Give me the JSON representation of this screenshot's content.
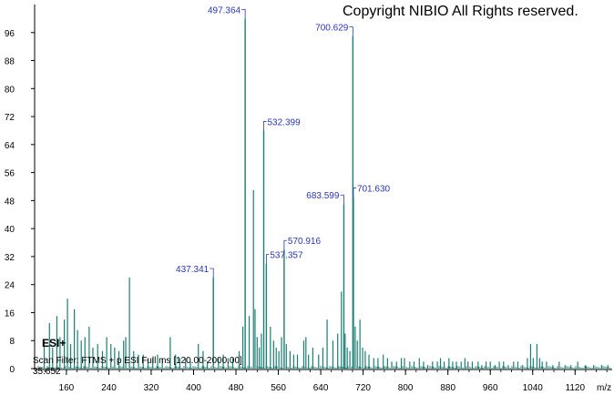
{
  "copyright": "Copyright NIBIO All Rights reserved.",
  "ionization_mode": "ESI+",
  "scan_filter": "Scan Filter: FTMS + p ESI Full ms [120.00-2000.00]",
  "time_value": "35.652",
  "colors": {
    "peak": "#1a7f74",
    "annotation": "#2a36b3",
    "axis": "#000000"
  },
  "chart_data": {
    "type": "bar",
    "title": "",
    "xlabel": "m/z",
    "ylabel": "",
    "xlim": [
      100,
      1190
    ],
    "ylim": [
      0,
      104
    ],
    "x_ticks": [
      160,
      240,
      320,
      400,
      480,
      560,
      640,
      720,
      800,
      880,
      960,
      1040,
      1120
    ],
    "y_ticks": [
      0,
      8,
      16,
      24,
      32,
      40,
      48,
      56,
      64,
      72,
      80,
      88,
      96
    ],
    "grid": false,
    "labeled_peaks": [
      {
        "mz": 437.341,
        "intensity": 26,
        "label": "437.341"
      },
      {
        "mz": 497.364,
        "intensity": 100,
        "label": "497.364"
      },
      {
        "mz": 532.399,
        "intensity": 68,
        "label": "532.399"
      },
      {
        "mz": 537.357,
        "intensity": 30,
        "label": "537.357"
      },
      {
        "mz": 570.916,
        "intensity": 34,
        "label": "570.916"
      },
      {
        "mz": 683.599,
        "intensity": 47,
        "label": "683.599"
      },
      {
        "mz": 700.629,
        "intensity": 95,
        "label": "700.629"
      },
      {
        "mz": 701.63,
        "intensity": 49,
        "label": "701.630"
      }
    ],
    "peaks": [
      [
        118,
        8
      ],
      [
        128,
        13
      ],
      [
        134,
        6
      ],
      [
        142,
        15
      ],
      [
        148,
        9
      ],
      [
        156,
        14
      ],
      [
        162,
        20
      ],
      [
        168,
        7
      ],
      [
        175,
        17
      ],
      [
        181,
        11
      ],
      [
        188,
        8
      ],
      [
        195,
        9
      ],
      [
        203,
        12
      ],
      [
        210,
        6
      ],
      [
        219,
        7
      ],
      [
        228,
        5
      ],
      [
        236,
        9
      ],
      [
        244,
        7
      ],
      [
        251,
        6
      ],
      [
        259,
        5
      ],
      [
        268,
        8
      ],
      [
        272,
        9
      ],
      [
        279,
        26
      ],
      [
        287,
        5
      ],
      [
        296,
        4
      ],
      [
        305,
        4
      ],
      [
        314,
        3
      ],
      [
        323,
        3
      ],
      [
        332,
        4
      ],
      [
        341,
        3
      ],
      [
        356,
        9
      ],
      [
        366,
        4
      ],
      [
        374,
        3
      ],
      [
        385,
        3
      ],
      [
        394,
        2
      ],
      [
        409,
        7
      ],
      [
        418,
        5
      ],
      [
        426,
        2
      ],
      [
        447,
        3
      ],
      [
        456,
        4
      ],
      [
        465,
        3
      ],
      [
        474,
        3
      ],
      [
        486,
        5
      ],
      [
        493,
        12
      ],
      [
        505,
        15
      ],
      [
        513,
        51
      ],
      [
        516,
        17
      ],
      [
        520,
        9
      ],
      [
        524,
        6
      ],
      [
        528,
        10
      ],
      [
        545,
        12
      ],
      [
        551,
        8
      ],
      [
        556,
        6
      ],
      [
        561,
        5
      ],
      [
        566,
        9
      ],
      [
        575,
        7
      ],
      [
        582,
        5
      ],
      [
        589,
        4
      ],
      [
        596,
        4
      ],
      [
        608,
        8
      ],
      [
        612,
        9
      ],
      [
        617,
        4
      ],
      [
        625,
        6
      ],
      [
        636,
        4
      ],
      [
        644,
        6
      ],
      [
        652,
        14
      ],
      [
        663,
        8
      ],
      [
        672,
        10
      ],
      [
        679,
        22
      ],
      [
        686,
        10
      ],
      [
        690,
        6
      ],
      [
        695,
        5
      ],
      [
        705,
        12
      ],
      [
        709,
        8
      ],
      [
        714,
        14
      ],
      [
        719,
        6
      ],
      [
        724,
        5
      ],
      [
        731,
        4
      ],
      [
        740,
        3
      ],
      [
        748,
        3
      ],
      [
        758,
        4
      ],
      [
        766,
        3
      ],
      [
        774,
        2
      ],
      [
        783,
        2
      ],
      [
        792,
        3
      ],
      [
        798,
        3
      ],
      [
        808,
        2
      ],
      [
        816,
        2
      ],
      [
        826,
        3
      ],
      [
        834,
        2
      ],
      [
        842,
        1
      ],
      [
        851,
        2
      ],
      [
        860,
        2
      ],
      [
        866,
        3
      ],
      [
        873,
        2
      ],
      [
        882,
        3
      ],
      [
        889,
        2
      ],
      [
        896,
        2
      ],
      [
        905,
        2
      ],
      [
        912,
        3
      ],
      [
        918,
        2
      ],
      [
        926,
        2
      ],
      [
        937,
        2
      ],
      [
        944,
        1
      ],
      [
        952,
        2
      ],
      [
        960,
        2
      ],
      [
        969,
        1
      ],
      [
        977,
        2
      ],
      [
        985,
        2
      ],
      [
        994,
        1
      ],
      [
        1004,
        2
      ],
      [
        1012,
        2
      ],
      [
        1021,
        1
      ],
      [
        1030,
        3
      ],
      [
        1036,
        7
      ],
      [
        1041,
        3
      ],
      [
        1048,
        7
      ],
      [
        1053,
        3
      ],
      [
        1058,
        2
      ],
      [
        1066,
        2
      ],
      [
        1078,
        1
      ],
      [
        1090,
        2
      ],
      [
        1101,
        1
      ],
      [
        1112,
        1
      ],
      [
        1125,
        2
      ],
      [
        1140,
        1
      ],
      [
        1155,
        1
      ],
      [
        1170,
        1
      ],
      [
        1182,
        1
      ]
    ]
  }
}
